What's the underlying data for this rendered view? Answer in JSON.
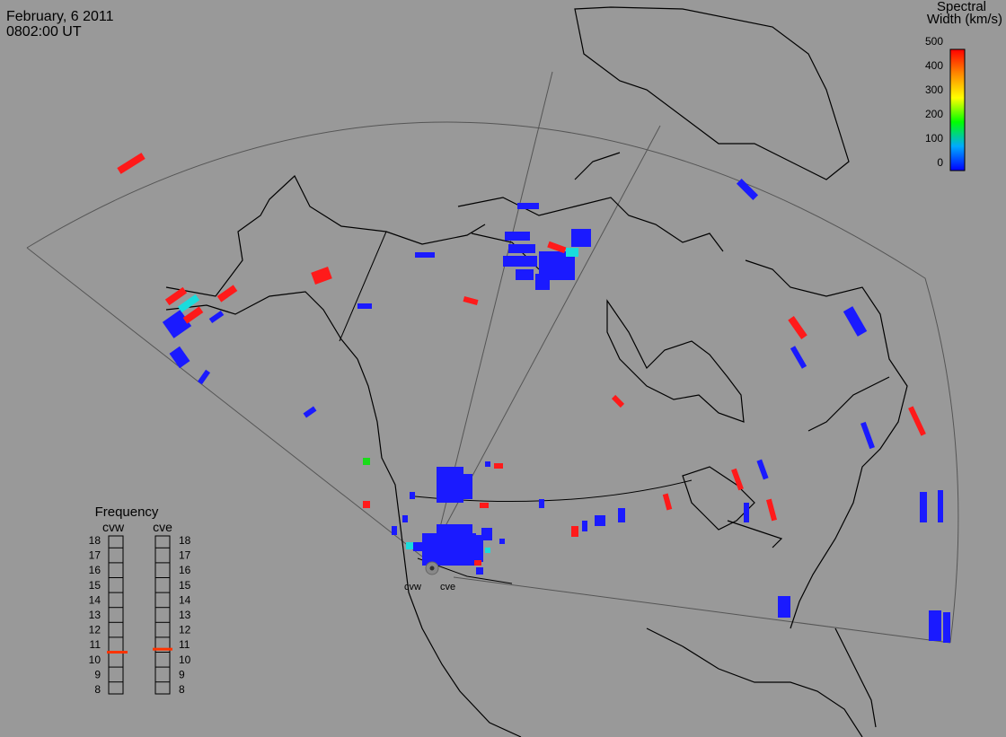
{
  "header": {
    "date": "February, 6 2011",
    "time": "0802:00 UT"
  },
  "colorbar": {
    "title_line1": "Spectral",
    "title_line2": "Width (km/s)",
    "ticks": [
      "500",
      "400",
      "300",
      "200",
      "100",
      "0"
    ],
    "range": [
      0,
      500
    ]
  },
  "radars": {
    "west": "cvw",
    "east": "cve"
  },
  "frequency": {
    "title": "Frequency",
    "col_west": "cvw",
    "col_east": "cve",
    "ticks": [
      "18",
      "17",
      "16",
      "15",
      "14",
      "13",
      "12",
      "11",
      "10",
      "9",
      "8"
    ],
    "cvw_value": 10.5,
    "cve_value": 10.7,
    "range": [
      8,
      18
    ]
  },
  "colors": {
    "background": "#999999",
    "low_width": "#1a1aff",
    "high_width": "#ff1a1a",
    "mid_width": "#1adcdc",
    "green_width": "#1adc1a",
    "freq_marker": "#ff3300"
  }
}
